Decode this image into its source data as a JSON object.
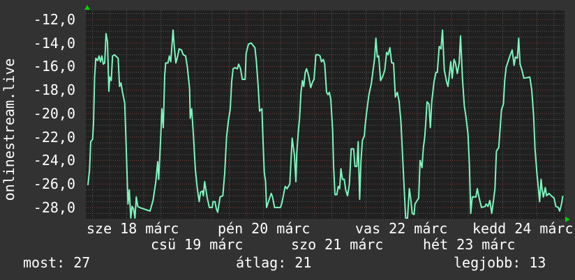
{
  "chart_data": {
    "type": "line",
    "ylabel": "onlinestream.live",
    "ylim": [
      -29.0,
      -11.2
    ],
    "xlim": [
      17.684,
      24.629
    ],
    "y_ticks": [
      "-12,0",
      "-14,0",
      "-16,0",
      "-18,0",
      "-20,0",
      "-22,0",
      "-24,0",
      "-26,0",
      "-28,0"
    ],
    "y_tick_values": [
      -12,
      -14,
      -16,
      -18,
      -20,
      -22,
      -24,
      -26,
      -28
    ],
    "x_tick_labels": [
      "sze 18 márc",
      "csü 19 márc",
      "pén 20 márc",
      "szo 21 márc",
      "vas 22 márc",
      "hét 23 márc",
      "kedd 24 márc"
    ],
    "x_tick_days": [
      18,
      19,
      20,
      21,
      22,
      23,
      24
    ],
    "grid": true,
    "colors": {
      "line": "#7cf5bd",
      "background": "#323232",
      "plot": "#202020",
      "major_grid": "#7a3a3a",
      "minor_grid": "#5a5a5a",
      "arrow": "#00d000"
    },
    "series": [
      {
        "x_unit": "day of March",
        "points": [
          [
            17.684,
            -26.1
          ],
          [
            17.707,
            -24.8
          ],
          [
            17.724,
            -22.4
          ],
          [
            17.752,
            -22.2
          ],
          [
            17.765,
            -20.8
          ],
          [
            17.782,
            -16.9
          ],
          [
            17.799,
            -15.3
          ],
          [
            17.827,
            -15.5
          ],
          [
            17.847,
            -15.1
          ],
          [
            17.867,
            -15.6
          ],
          [
            17.888,
            -15.1
          ],
          [
            17.908,
            -15.8
          ],
          [
            17.929,
            -15.7
          ],
          [
            17.949,
            -13.2
          ],
          [
            17.969,
            -13.9
          ],
          [
            17.99,
            -18.1
          ],
          [
            18.003,
            -16.9
          ],
          [
            18.024,
            -17.2
          ],
          [
            18.044,
            -15.1
          ],
          [
            18.071,
            -15.0
          ],
          [
            18.126,
            -15.3
          ],
          [
            18.146,
            -17.7
          ],
          [
            18.167,
            -17.4
          ],
          [
            18.187,
            -18.1
          ],
          [
            18.221,
            -19.1
          ],
          [
            18.241,
            -22.4
          ],
          [
            18.269,
            -27.7
          ],
          [
            18.289,
            -26.5
          ],
          [
            18.31,
            -28.9
          ],
          [
            18.33,
            -27.9
          ],
          [
            18.35,
            -28.1
          ],
          [
            18.371,
            -28.9
          ],
          [
            18.391,
            -27.1
          ],
          [
            18.412,
            -27.9
          ],
          [
            18.439,
            -28.0
          ],
          [
            18.592,
            -28.3
          ],
          [
            18.636,
            -27.4
          ],
          [
            18.677,
            -25.8
          ],
          [
            18.704,
            -24.1
          ],
          [
            18.718,
            -25.6
          ],
          [
            18.745,
            -22.4
          ],
          [
            18.765,
            -19.6
          ],
          [
            18.786,
            -21.2
          ],
          [
            18.806,
            -16.8
          ],
          [
            18.82,
            -15.7
          ],
          [
            18.854,
            -15.7
          ],
          [
            18.874,
            -15.1
          ],
          [
            18.895,
            -15.6
          ],
          [
            18.929,
            -12.9
          ],
          [
            18.949,
            -14.5
          ],
          [
            18.969,
            -15.7
          ],
          [
            18.997,
            -15.1
          ],
          [
            19.017,
            -14.5
          ],
          [
            19.051,
            -14.6
          ],
          [
            19.078,
            -15.0
          ],
          [
            19.112,
            -15.1
          ],
          [
            19.139,
            -16.1
          ],
          [
            19.17,
            -17.9
          ],
          [
            19.18,
            -20.4
          ],
          [
            19.201,
            -19.6
          ],
          [
            19.228,
            -22.0
          ],
          [
            19.255,
            -24.8
          ],
          [
            19.282,
            -26.3
          ],
          [
            19.31,
            -27.5
          ],
          [
            19.33,
            -26.7
          ],
          [
            19.357,
            -26.6
          ],
          [
            19.371,
            -27.0
          ],
          [
            19.391,
            -25.8
          ],
          [
            19.425,
            -27.1
          ],
          [
            19.459,
            -28.0
          ],
          [
            19.5,
            -28.0
          ],
          [
            19.514,
            -27.5
          ],
          [
            19.541,
            -27.5
          ],
          [
            19.561,
            -28.1
          ],
          [
            19.582,
            -28.4
          ],
          [
            19.616,
            -27.1
          ],
          [
            19.656,
            -27.0
          ],
          [
            19.684,
            -25.1
          ],
          [
            19.711,
            -22.0
          ],
          [
            19.738,
            -20.6
          ],
          [
            19.765,
            -19.6
          ],
          [
            19.786,
            -17.3
          ],
          [
            19.806,
            -16.2
          ],
          [
            19.833,
            -16.1
          ],
          [
            19.867,
            -16.2
          ],
          [
            19.888,
            -15.8
          ],
          [
            19.915,
            -16.2
          ],
          [
            19.942,
            -17.1
          ],
          [
            19.983,
            -17.1
          ],
          [
            19.997,
            -14.9
          ],
          [
            20.031,
            -14.1
          ],
          [
            20.071,
            -14.0
          ],
          [
            20.126,
            -14.4
          ],
          [
            20.146,
            -15.5
          ],
          [
            20.173,
            -17.7
          ],
          [
            20.194,
            -19.8
          ],
          [
            20.228,
            -19.6
          ],
          [
            20.241,
            -21.8
          ],
          [
            20.262,
            -25.0
          ],
          [
            20.282,
            -25.8
          ],
          [
            20.296,
            -28.0
          ],
          [
            20.323,
            -27.5
          ],
          [
            20.364,
            -26.8
          ],
          [
            20.384,
            -27.1
          ],
          [
            20.412,
            -28.0
          ],
          [
            20.5,
            -28.0
          ],
          [
            20.52,
            -27.6
          ],
          [
            20.548,
            -26.8
          ],
          [
            20.568,
            -26.2
          ],
          [
            20.595,
            -26.4
          ],
          [
            20.636,
            -26.0
          ],
          [
            20.67,
            -22.1
          ],
          [
            20.704,
            -23.6
          ],
          [
            20.724,
            -25.8
          ],
          [
            20.738,
            -23.4
          ],
          [
            20.759,
            -21.6
          ],
          [
            20.779,
            -20.4
          ],
          [
            20.799,
            -18.2
          ],
          [
            20.82,
            -17.2
          ],
          [
            20.84,
            -17.7
          ],
          [
            20.861,
            -16.5
          ],
          [
            20.881,
            -16.2
          ],
          [
            20.908,
            -16.7
          ],
          [
            20.942,
            -17.8
          ],
          [
            20.969,
            -17.3
          ],
          [
            20.99,
            -17.1
          ],
          [
            21.017,
            -15.0
          ],
          [
            21.051,
            -15.0
          ],
          [
            21.078,
            -15.1
          ],
          [
            21.099,
            -15.6
          ],
          [
            21.126,
            -15.4
          ],
          [
            21.146,
            -15.8
          ],
          [
            21.173,
            -18.2
          ],
          [
            21.194,
            -18.4
          ],
          [
            21.214,
            -18.2
          ],
          [
            21.235,
            -18.8
          ],
          [
            21.262,
            -21.4
          ],
          [
            21.276,
            -24.4
          ],
          [
            21.296,
            -26.9
          ],
          [
            21.323,
            -26.9
          ],
          [
            21.344,
            -26.2
          ],
          [
            21.364,
            -26.4
          ],
          [
            21.384,
            -24.7
          ],
          [
            21.405,
            -25.6
          ],
          [
            21.432,
            -25.6
          ],
          [
            21.453,
            -26.5
          ],
          [
            21.48,
            -27.0
          ],
          [
            21.507,
            -26.0
          ],
          [
            21.534,
            -23.0
          ],
          [
            21.568,
            -23.0
          ],
          [
            21.589,
            -24.5
          ],
          [
            21.616,
            -24.5
          ],
          [
            21.636,
            -22.4
          ],
          [
            21.657,
            -27.3
          ],
          [
            21.677,
            -24.0
          ],
          [
            21.697,
            -22.3
          ],
          [
            21.725,
            -21.9
          ],
          [
            21.738,
            -21.0
          ],
          [
            21.759,
            -19.9
          ],
          [
            21.793,
            -18.4
          ],
          [
            21.827,
            -17.5
          ],
          [
            21.847,
            -16.6
          ],
          [
            21.874,
            -15.4
          ],
          [
            21.895,
            -13.6
          ],
          [
            21.915,
            -15.2
          ],
          [
            21.936,
            -15.1
          ],
          [
            21.963,
            -17.2
          ],
          [
            21.997,
            -16.8
          ],
          [
            22.024,
            -16.3
          ],
          [
            22.051,
            -14.8
          ],
          [
            22.072,
            -15.0
          ],
          [
            22.099,
            -14.4
          ],
          [
            22.126,
            -15.7
          ],
          [
            22.153,
            -15.7
          ],
          [
            22.18,
            -18.6
          ],
          [
            22.208,
            -18.2
          ],
          [
            22.235,
            -19.0
          ],
          [
            22.262,
            -20.8
          ],
          [
            22.282,
            -23.2
          ],
          [
            22.303,
            -25.8
          ],
          [
            22.33,
            -28.9
          ],
          [
            22.357,
            -28.9
          ],
          [
            22.384,
            -26.4
          ],
          [
            22.405,
            -27.3
          ],
          [
            22.425,
            -28.5
          ],
          [
            22.452,
            -28.6
          ],
          [
            22.466,
            -27.7
          ],
          [
            22.52,
            -27.2
          ],
          [
            22.541,
            -24.0
          ],
          [
            22.568,
            -24.6
          ],
          [
            22.589,
            -22.9
          ],
          [
            22.609,
            -22.0
          ],
          [
            22.623,
            -20.8
          ],
          [
            22.643,
            -19.0
          ],
          [
            22.67,
            -19.2
          ],
          [
            22.691,
            -21.2
          ],
          [
            22.711,
            -19.0
          ],
          [
            22.745,
            -17.3
          ],
          [
            22.772,
            -16.5
          ],
          [
            22.793,
            -16.5
          ],
          [
            22.82,
            -14.3
          ],
          [
            22.847,
            -14.5
          ],
          [
            22.868,
            -12.9
          ],
          [
            22.895,
            -16.3
          ],
          [
            22.929,
            -17.3
          ],
          [
            22.949,
            -17.7
          ],
          [
            22.97,
            -16.6
          ],
          [
            22.99,
            -15.6
          ],
          [
            23.01,
            -17.0
          ],
          [
            23.038,
            -15.4
          ],
          [
            23.058,
            -15.7
          ],
          [
            23.085,
            -16.6
          ],
          [
            23.112,
            -15.7
          ],
          [
            23.133,
            -13.4
          ],
          [
            23.16,
            -17.0
          ],
          [
            23.187,
            -19.3
          ],
          [
            23.214,
            -20.4
          ],
          [
            23.242,
            -21.8
          ],
          [
            23.262,
            -24.4
          ],
          [
            23.282,
            -28.5
          ],
          [
            23.303,
            -27.1
          ],
          [
            23.357,
            -27.1
          ],
          [
            23.378,
            -26.4
          ],
          [
            23.405,
            -27.2
          ],
          [
            23.439,
            -28.0
          ],
          [
            23.493,
            -27.9
          ],
          [
            23.507,
            -27.7
          ],
          [
            23.534,
            -27.9
          ],
          [
            23.561,
            -27.4
          ],
          [
            23.589,
            -28.5
          ],
          [
            23.616,
            -27.3
          ],
          [
            23.636,
            -26.4
          ],
          [
            23.657,
            -23.2
          ],
          [
            23.691,
            -22.9
          ],
          [
            23.711,
            -21.3
          ],
          [
            23.731,
            -19.7
          ],
          [
            23.759,
            -19.2
          ],
          [
            23.779,
            -17.2
          ],
          [
            23.799,
            -16.1
          ],
          [
            23.827,
            -15.6
          ],
          [
            23.854,
            -15.1
          ],
          [
            23.888,
            -14.6
          ],
          [
            23.915,
            -15.9
          ],
          [
            23.935,
            -15.2
          ],
          [
            23.963,
            -15.3
          ],
          [
            23.983,
            -13.6
          ],
          [
            24.003,
            -15.8
          ],
          [
            24.031,
            -16.3
          ],
          [
            24.058,
            -17.0
          ],
          [
            24.146,
            -16.9
          ],
          [
            24.173,
            -18.0
          ],
          [
            24.201,
            -20.2
          ],
          [
            24.221,
            -23.0
          ],
          [
            24.248,
            -25.0
          ],
          [
            24.269,
            -26.3
          ],
          [
            24.289,
            -27.5
          ],
          [
            24.31,
            -25.6
          ],
          [
            24.323,
            -26.4
          ],
          [
            24.344,
            -27.1
          ],
          [
            24.371,
            -26.3
          ],
          [
            24.391,
            -27.0
          ],
          [
            24.425,
            -26.8
          ],
          [
            24.459,
            -27.0
          ],
          [
            24.5,
            -27.2
          ],
          [
            24.527,
            -27.9
          ],
          [
            24.561,
            -28.0
          ],
          [
            24.582,
            -28.3
          ],
          [
            24.609,
            -27.7
          ],
          [
            24.629,
            -27.0
          ]
        ]
      }
    ]
  },
  "legend": {
    "current": "most: 27",
    "average": "átlag: 21",
    "max": "legjobb: 13"
  }
}
